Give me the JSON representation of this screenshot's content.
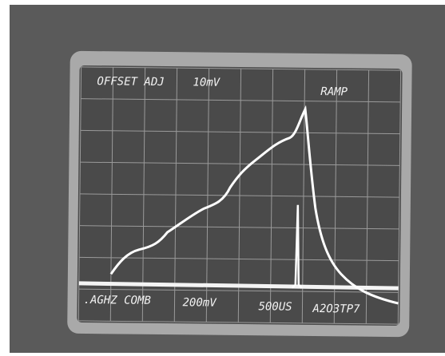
{
  "screen": {
    "top_labels": [
      "OFFSET ADJ",
      "10mV",
      "RAMP"
    ],
    "bottom_labels": [
      ".AGHZ COMB",
      "200mV",
      "500US",
      "A2O3TP7"
    ]
  }
}
